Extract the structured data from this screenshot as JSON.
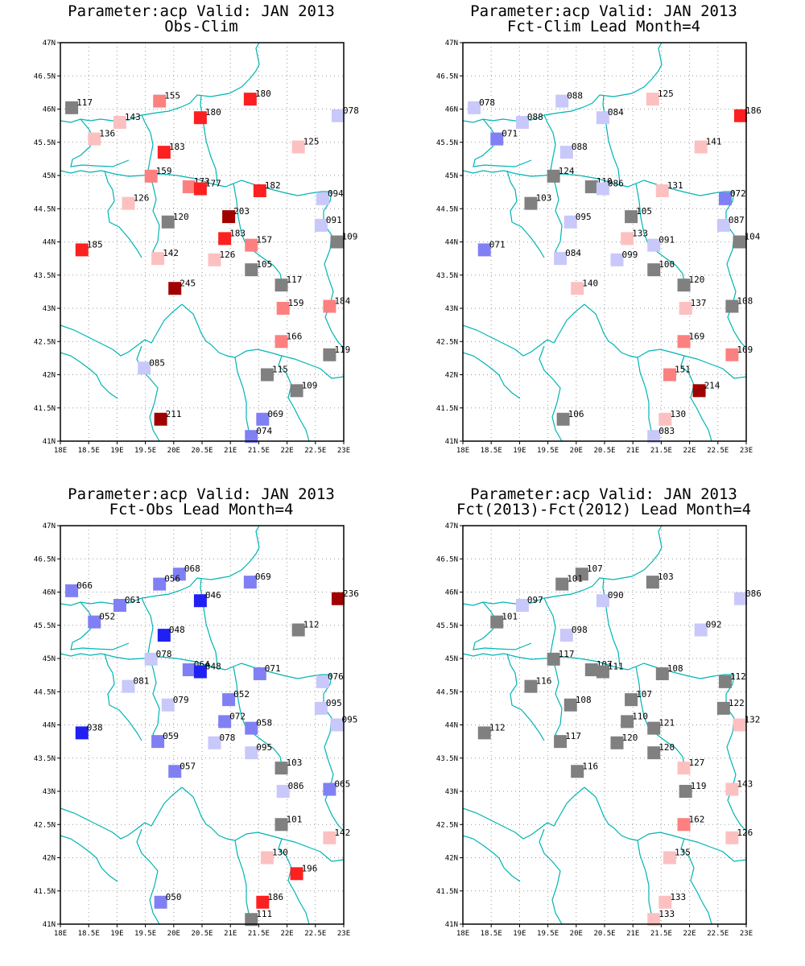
{
  "colors": {
    "neutral": "#808080",
    "river": "#00b4b4",
    "frame": "#000000"
  },
  "axes": {
    "xticks": [
      {
        "v": 18,
        "t": "18E"
      },
      {
        "v": 18.5,
        "t": "18.5E"
      },
      {
        "v": 19,
        "t": "19E"
      },
      {
        "v": 19.5,
        "t": "19.5E"
      },
      {
        "v": 20,
        "t": "20E"
      },
      {
        "v": 20.5,
        "t": "20.5E"
      },
      {
        "v": 21,
        "t": "21E"
      },
      {
        "v": 21.5,
        "t": "21.5E"
      },
      {
        "v": 22,
        "t": "22E"
      },
      {
        "v": 22.5,
        "t": "22.5E"
      },
      {
        "v": 23,
        "t": "23E"
      }
    ],
    "yticks": [
      {
        "v": 41,
        "t": "41N"
      },
      {
        "v": 41.5,
        "t": "41.5N"
      },
      {
        "v": 42,
        "t": "42N"
      },
      {
        "v": 42.5,
        "t": "42.5N"
      },
      {
        "v": 43,
        "t": "43N"
      },
      {
        "v": 43.5,
        "t": "43.5N"
      },
      {
        "v": 44,
        "t": "44N"
      },
      {
        "v": 44.5,
        "t": "44.5N"
      },
      {
        "v": 45,
        "t": "45N"
      },
      {
        "v": 45.5,
        "t": "45.5N"
      },
      {
        "v": 46,
        "t": "46N"
      },
      {
        "v": 46.5,
        "t": "46.5N"
      },
      {
        "v": 47,
        "t": "47N"
      }
    ],
    "lon_range": [
      18,
      23
    ],
    "lat_range": [
      41,
      47
    ],
    "grid": "dotted"
  },
  "panels": [
    {
      "title1": "Parameter:acp Valid: JAN 2013",
      "title2": "Obs-Clim",
      "stations": [
        {
          "lon": 18.2,
          "lat": 46.02,
          "label": "117",
          "color": "#808080"
        },
        {
          "lon": 19.75,
          "lat": 46.12,
          "label": "155",
          "color": "#fd8080"
        },
        {
          "lon": 21.35,
          "lat": 46.15,
          "label": "180",
          "color": "#fd2020"
        },
        {
          "lon": 20.47,
          "lat": 45.87,
          "label": "180",
          "color": "#fd2020"
        },
        {
          "lon": 19.05,
          "lat": 45.8,
          "label": "143",
          "color": "#fdc0c0"
        },
        {
          "lon": 22.9,
          "lat": 45.9,
          "label": "078",
          "color": "#c8c8fa"
        },
        {
          "lon": 18.6,
          "lat": 45.55,
          "label": "136",
          "color": "#fdc0c0"
        },
        {
          "lon": 22.2,
          "lat": 45.43,
          "label": "125",
          "color": "#fdc0c0"
        },
        {
          "lon": 19.83,
          "lat": 45.35,
          "label": "183",
          "color": "#fd2020"
        },
        {
          "lon": 19.6,
          "lat": 44.99,
          "label": "159",
          "color": "#fd8080"
        },
        {
          "lon": 20.27,
          "lat": 44.83,
          "label": "172",
          "color": "#fd8080"
        },
        {
          "lon": 20.47,
          "lat": 44.8,
          "label": "177",
          "color": "#fd2020"
        },
        {
          "lon": 21.52,
          "lat": 44.77,
          "label": "182",
          "color": "#fd2020"
        },
        {
          "lon": 22.63,
          "lat": 44.65,
          "label": "094",
          "color": "#c8c8fa"
        },
        {
          "lon": 19.2,
          "lat": 44.58,
          "label": "126",
          "color": "#fdc0c0"
        },
        {
          "lon": 19.9,
          "lat": 44.3,
          "label": "120",
          "color": "#808080"
        },
        {
          "lon": 20.97,
          "lat": 44.38,
          "label": "203",
          "color": "#a00000"
        },
        {
          "lon": 22.6,
          "lat": 44.25,
          "label": "091",
          "color": "#c8c8fa"
        },
        {
          "lon": 22.88,
          "lat": 44.0,
          "label": "109",
          "color": "#808080"
        },
        {
          "lon": 20.9,
          "lat": 44.05,
          "label": "183",
          "color": "#fd2020"
        },
        {
          "lon": 21.37,
          "lat": 43.95,
          "label": "157",
          "color": "#fd8080"
        },
        {
          "lon": 18.38,
          "lat": 43.88,
          "label": "185",
          "color": "#fd2020"
        },
        {
          "lon": 19.72,
          "lat": 43.75,
          "label": "142",
          "color": "#fdc0c0"
        },
        {
          "lon": 20.72,
          "lat": 43.73,
          "label": "126",
          "color": "#fdc0c0"
        },
        {
          "lon": 21.37,
          "lat": 43.58,
          "label": "105",
          "color": "#808080"
        },
        {
          "lon": 21.9,
          "lat": 43.35,
          "label": "117",
          "color": "#808080"
        },
        {
          "lon": 20.02,
          "lat": 43.3,
          "label": "245",
          "color": "#a00000"
        },
        {
          "lon": 21.93,
          "lat": 43.0,
          "label": "159",
          "color": "#fd8080"
        },
        {
          "lon": 22.75,
          "lat": 43.03,
          "label": "184",
          "color": "#fd8080"
        },
        {
          "lon": 21.9,
          "lat": 42.5,
          "label": "166",
          "color": "#fd8080"
        },
        {
          "lon": 22.75,
          "lat": 42.3,
          "label": "119",
          "color": "#808080"
        },
        {
          "lon": 19.48,
          "lat": 42.1,
          "label": "085",
          "color": "#c8c8fa"
        },
        {
          "lon": 21.65,
          "lat": 42.0,
          "label": "115",
          "color": "#808080"
        },
        {
          "lon": 22.17,
          "lat": 41.76,
          "label": "109",
          "color": "#808080"
        },
        {
          "lon": 19.77,
          "lat": 41.33,
          "label": "211",
          "color": "#a00000"
        },
        {
          "lon": 21.57,
          "lat": 41.33,
          "label": "069",
          "color": "#8080f4"
        },
        {
          "lon": 21.37,
          "lat": 41.07,
          "label": "074",
          "color": "#8080f4"
        }
      ]
    },
    {
      "title1": "Parameter:acp Valid: JAN 2013",
      "title2": "Fct-Clim Lead Month=4",
      "stations": [
        {
          "lon": 18.2,
          "lat": 46.02,
          "label": "078",
          "color": "#c8c8fa"
        },
        {
          "lon": 19.75,
          "lat": 46.12,
          "label": "088",
          "color": "#c8c8fa"
        },
        {
          "lon": 21.35,
          "lat": 46.15,
          "label": "125",
          "color": "#fdc0c0"
        },
        {
          "lon": 20.47,
          "lat": 45.87,
          "label": "084",
          "color": "#c8c8fa"
        },
        {
          "lon": 19.05,
          "lat": 45.8,
          "label": "088",
          "color": "#c8c8fa"
        },
        {
          "lon": 22.9,
          "lat": 45.9,
          "label": "186",
          "color": "#fd2020"
        },
        {
          "lon": 18.6,
          "lat": 45.55,
          "label": "071",
          "color": "#8080f4"
        },
        {
          "lon": 22.2,
          "lat": 45.43,
          "label": "141",
          "color": "#fdc0c0"
        },
        {
          "lon": 19.83,
          "lat": 45.35,
          "label": "088",
          "color": "#c8c8fa"
        },
        {
          "lon": 19.6,
          "lat": 44.99,
          "label": "124",
          "color": "#808080"
        },
        {
          "lon": 20.27,
          "lat": 44.83,
          "label": "110",
          "color": "#808080"
        },
        {
          "lon": 20.47,
          "lat": 44.8,
          "label": "086",
          "color": "#c8c8fa"
        },
        {
          "lon": 21.52,
          "lat": 44.77,
          "label": "131",
          "color": "#fdc0c0"
        },
        {
          "lon": 22.63,
          "lat": 44.65,
          "label": "072",
          "color": "#8080f4"
        },
        {
          "lon": 19.2,
          "lat": 44.58,
          "label": "103",
          "color": "#808080"
        },
        {
          "lon": 19.9,
          "lat": 44.3,
          "label": "095",
          "color": "#c8c8fa"
        },
        {
          "lon": 20.97,
          "lat": 44.38,
          "label": "105",
          "color": "#808080"
        },
        {
          "lon": 22.6,
          "lat": 44.25,
          "label": "087",
          "color": "#c8c8fa"
        },
        {
          "lon": 22.88,
          "lat": 44.0,
          "label": "104",
          "color": "#808080"
        },
        {
          "lon": 20.9,
          "lat": 44.05,
          "label": "133",
          "color": "#fdc0c0"
        },
        {
          "lon": 21.37,
          "lat": 43.95,
          "label": "091",
          "color": "#c8c8fa"
        },
        {
          "lon": 18.38,
          "lat": 43.88,
          "label": "071",
          "color": "#8080f4"
        },
        {
          "lon": 19.72,
          "lat": 43.75,
          "label": "084",
          "color": "#c8c8fa"
        },
        {
          "lon": 20.72,
          "lat": 43.73,
          "label": "099",
          "color": "#c8c8fa"
        },
        {
          "lon": 21.37,
          "lat": 43.58,
          "label": "100",
          "color": "#808080"
        },
        {
          "lon": 21.9,
          "lat": 43.35,
          "label": "120",
          "color": "#808080"
        },
        {
          "lon": 20.02,
          "lat": 43.3,
          "label": "140",
          "color": "#fdc0c0"
        },
        {
          "lon": 21.93,
          "lat": 43.0,
          "label": "137",
          "color": "#fdc0c0"
        },
        {
          "lon": 22.75,
          "lat": 43.03,
          "label": "108",
          "color": "#808080"
        },
        {
          "lon": 21.9,
          "lat": 42.5,
          "label": "169",
          "color": "#fd8080"
        },
        {
          "lon": 22.75,
          "lat": 42.3,
          "label": "169",
          "color": "#fd8080"
        },
        {
          "lon": 21.65,
          "lat": 42.0,
          "label": "151",
          "color": "#fd8080"
        },
        {
          "lon": 22.17,
          "lat": 41.76,
          "label": "214",
          "color": "#a00000"
        },
        {
          "lon": 19.77,
          "lat": 41.33,
          "label": "106",
          "color": "#808080"
        },
        {
          "lon": 21.57,
          "lat": 41.33,
          "label": "130",
          "color": "#fdc0c0"
        },
        {
          "lon": 21.37,
          "lat": 41.07,
          "label": "083",
          "color": "#c8c8fa"
        }
      ]
    },
    {
      "title1": "Parameter:acp Valid: JAN 2013",
      "title2": "Fct-Obs Lead Month=4",
      "stations": [
        {
          "lon": 18.2,
          "lat": 46.02,
          "label": "066",
          "color": "#8080f4"
        },
        {
          "lon": 20.1,
          "lat": 46.27,
          "label": "068",
          "color": "#8080f4"
        },
        {
          "lon": 19.75,
          "lat": 46.12,
          "label": "056",
          "color": "#8080f4"
        },
        {
          "lon": 21.35,
          "lat": 46.15,
          "label": "069",
          "color": "#8080f4"
        },
        {
          "lon": 20.47,
          "lat": 45.87,
          "label": "046",
          "color": "#2020f4"
        },
        {
          "lon": 19.05,
          "lat": 45.8,
          "label": "061",
          "color": "#8080f4"
        },
        {
          "lon": 22.9,
          "lat": 45.9,
          "label": "236",
          "color": "#a00000"
        },
        {
          "lon": 18.6,
          "lat": 45.55,
          "label": "052",
          "color": "#8080f4"
        },
        {
          "lon": 22.2,
          "lat": 45.43,
          "label": "112",
          "color": "#808080"
        },
        {
          "lon": 19.83,
          "lat": 45.35,
          "label": "048",
          "color": "#2020f4"
        },
        {
          "lon": 19.6,
          "lat": 44.99,
          "label": "078",
          "color": "#c8c8fa"
        },
        {
          "lon": 20.27,
          "lat": 44.83,
          "label": "064",
          "color": "#8080f4"
        },
        {
          "lon": 20.47,
          "lat": 44.8,
          "label": "048",
          "color": "#2020f4"
        },
        {
          "lon": 21.52,
          "lat": 44.77,
          "label": "071",
          "color": "#8080f4"
        },
        {
          "lon": 22.63,
          "lat": 44.65,
          "label": "076",
          "color": "#c8c8fa"
        },
        {
          "lon": 19.2,
          "lat": 44.58,
          "label": "081",
          "color": "#c8c8fa"
        },
        {
          "lon": 19.9,
          "lat": 44.3,
          "label": "079",
          "color": "#c8c8fa"
        },
        {
          "lon": 20.97,
          "lat": 44.38,
          "label": "052",
          "color": "#8080f4"
        },
        {
          "lon": 22.6,
          "lat": 44.25,
          "label": "095",
          "color": "#c8c8fa"
        },
        {
          "lon": 22.88,
          "lat": 44.0,
          "label": "095",
          "color": "#c8c8fa"
        },
        {
          "lon": 20.9,
          "lat": 44.05,
          "label": "072",
          "color": "#8080f4"
        },
        {
          "lon": 21.37,
          "lat": 43.95,
          "label": "058",
          "color": "#8080f4"
        },
        {
          "lon": 18.38,
          "lat": 43.88,
          "label": "038",
          "color": "#2020f4"
        },
        {
          "lon": 19.72,
          "lat": 43.75,
          "label": "059",
          "color": "#8080f4"
        },
        {
          "lon": 20.72,
          "lat": 43.73,
          "label": "078",
          "color": "#c8c8fa"
        },
        {
          "lon": 21.37,
          "lat": 43.58,
          "label": "095",
          "color": "#c8c8fa"
        },
        {
          "lon": 21.9,
          "lat": 43.35,
          "label": "103",
          "color": "#808080"
        },
        {
          "lon": 20.02,
          "lat": 43.3,
          "label": "057",
          "color": "#8080f4"
        },
        {
          "lon": 21.93,
          "lat": 43.0,
          "label": "086",
          "color": "#c8c8fa"
        },
        {
          "lon": 22.75,
          "lat": 43.03,
          "label": "065",
          "color": "#8080f4"
        },
        {
          "lon": 21.9,
          "lat": 42.5,
          "label": "101",
          "color": "#808080"
        },
        {
          "lon": 22.75,
          "lat": 42.3,
          "label": "142",
          "color": "#fdc0c0"
        },
        {
          "lon": 21.65,
          "lat": 42.0,
          "label": "130",
          "color": "#fdc0c0"
        },
        {
          "lon": 22.17,
          "lat": 41.76,
          "label": "196",
          "color": "#fd2020"
        },
        {
          "lon": 19.77,
          "lat": 41.33,
          "label": "050",
          "color": "#8080f4"
        },
        {
          "lon": 21.57,
          "lat": 41.33,
          "label": "186",
          "color": "#fd2020"
        },
        {
          "lon": 21.37,
          "lat": 41.07,
          "label": "111",
          "color": "#808080"
        }
      ]
    },
    {
      "title1": "Parameter:acp Valid: JAN 2013",
      "title2": "Fct(2013)-Fct(2012) Lead Month=4",
      "stations": [
        {
          "lon": 20.1,
          "lat": 46.27,
          "label": "107",
          "color": "#808080"
        },
        {
          "lon": 19.75,
          "lat": 46.12,
          "label": "101",
          "color": "#808080"
        },
        {
          "lon": 21.35,
          "lat": 46.15,
          "label": "103",
          "color": "#808080"
        },
        {
          "lon": 20.47,
          "lat": 45.87,
          "label": "090",
          "color": "#c8c8fa"
        },
        {
          "lon": 19.05,
          "lat": 45.8,
          "label": "097",
          "color": "#c8c8fa"
        },
        {
          "lon": 22.9,
          "lat": 45.9,
          "label": "086",
          "color": "#c8c8fa"
        },
        {
          "lon": 18.6,
          "lat": 45.55,
          "label": "101",
          "color": "#808080"
        },
        {
          "lon": 22.2,
          "lat": 45.43,
          "label": "092",
          "color": "#c8c8fa"
        },
        {
          "lon": 19.83,
          "lat": 45.35,
          "label": "098",
          "color": "#c8c8fa"
        },
        {
          "lon": 19.6,
          "lat": 44.99,
          "label": "117",
          "color": "#808080"
        },
        {
          "lon": 20.27,
          "lat": 44.83,
          "label": "107",
          "color": "#808080"
        },
        {
          "lon": 20.47,
          "lat": 44.8,
          "label": "111",
          "color": "#808080"
        },
        {
          "lon": 21.52,
          "lat": 44.77,
          "label": "108",
          "color": "#808080"
        },
        {
          "lon": 22.63,
          "lat": 44.65,
          "label": "112",
          "color": "#808080"
        },
        {
          "lon": 19.2,
          "lat": 44.58,
          "label": "116",
          "color": "#808080"
        },
        {
          "lon": 19.9,
          "lat": 44.3,
          "label": "108",
          "color": "#808080"
        },
        {
          "lon": 20.97,
          "lat": 44.38,
          "label": "107",
          "color": "#808080"
        },
        {
          "lon": 22.6,
          "lat": 44.25,
          "label": "122",
          "color": "#808080"
        },
        {
          "lon": 22.88,
          "lat": 44.0,
          "label": "132",
          "color": "#fdc0c0"
        },
        {
          "lon": 20.9,
          "lat": 44.05,
          "label": "110",
          "color": "#808080"
        },
        {
          "lon": 21.37,
          "lat": 43.95,
          "label": "121",
          "color": "#808080"
        },
        {
          "lon": 18.38,
          "lat": 43.88,
          "label": "112",
          "color": "#808080"
        },
        {
          "lon": 19.72,
          "lat": 43.75,
          "label": "117",
          "color": "#808080"
        },
        {
          "lon": 20.72,
          "lat": 43.73,
          "label": "120",
          "color": "#808080"
        },
        {
          "lon": 21.37,
          "lat": 43.58,
          "label": "120",
          "color": "#808080"
        },
        {
          "lon": 21.9,
          "lat": 43.35,
          "label": "127",
          "color": "#fdc0c0"
        },
        {
          "lon": 20.02,
          "lat": 43.3,
          "label": "116",
          "color": "#808080"
        },
        {
          "lon": 21.93,
          "lat": 43.0,
          "label": "119",
          "color": "#808080"
        },
        {
          "lon": 22.75,
          "lat": 43.03,
          "label": "143",
          "color": "#fdc0c0"
        },
        {
          "lon": 21.9,
          "lat": 42.5,
          "label": "162",
          "color": "#fd8080"
        },
        {
          "lon": 22.75,
          "lat": 42.3,
          "label": "126",
          "color": "#fdc0c0"
        },
        {
          "lon": 21.65,
          "lat": 42.0,
          "label": "135",
          "color": "#fdc0c0"
        },
        {
          "lon": 21.57,
          "lat": 41.33,
          "label": "133",
          "color": "#fdc0c0"
        },
        {
          "lon": 21.37,
          "lat": 41.07,
          "label": "133",
          "color": "#fdc0c0"
        }
      ]
    }
  ]
}
